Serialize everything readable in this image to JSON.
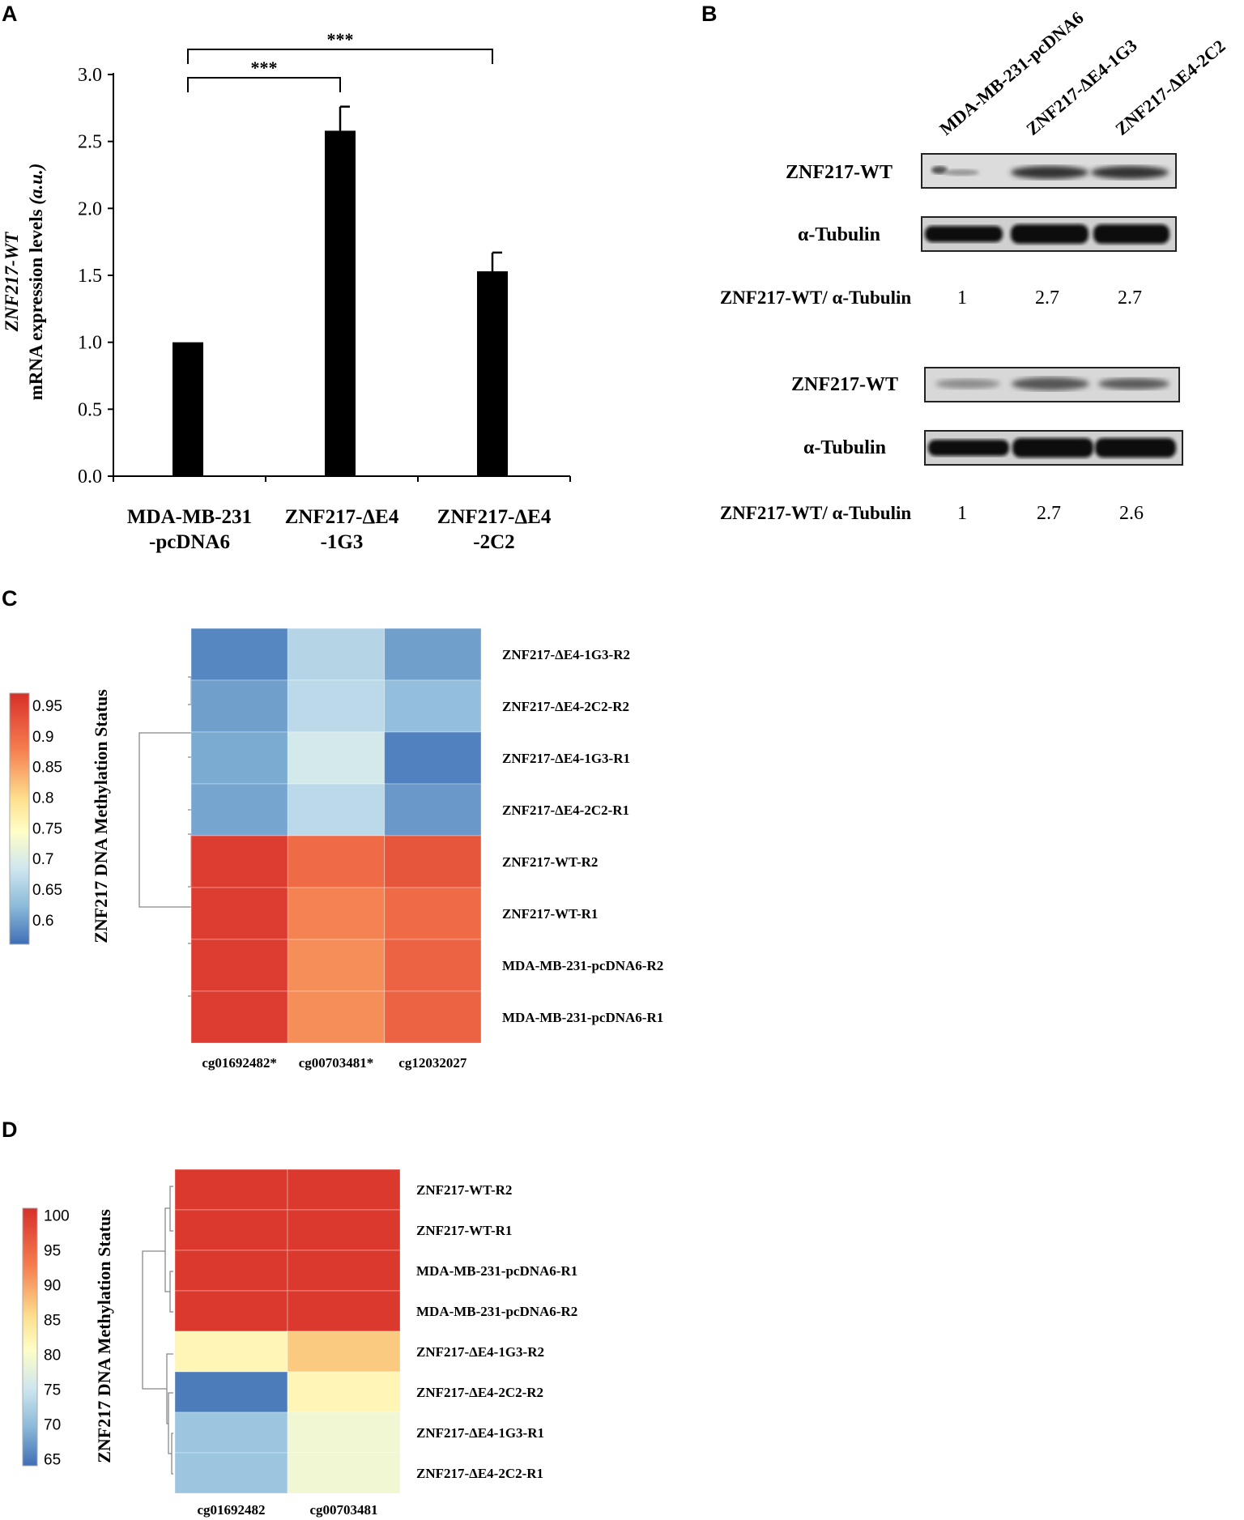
{
  "panels": {
    "A": "A",
    "B": "B",
    "C": "C",
    "D": "D"
  },
  "chart_data": [
    {
      "panel": "A",
      "type": "bar",
      "title": "",
      "ylabel_italic": "ZNF217-WT",
      "ylabel": "mRNA expression levels",
      "ylabel_unit": "(a.u.)",
      "categories": [
        [
          "MDA-MB-231",
          "-pcDNA6"
        ],
        [
          "ZNF217-ΔE4",
          "-1G3"
        ],
        [
          "ZNF217-ΔE4",
          "-2C2"
        ]
      ],
      "values": [
        1.0,
        2.58,
        1.53
      ],
      "errors": [
        0.0,
        0.18,
        0.14
      ],
      "ylim": [
        0,
        3.0
      ],
      "yticks": [
        "0.0",
        "0.5",
        "1.0",
        "1.5",
        "2.0",
        "2.5",
        "3.0"
      ],
      "significance": [
        {
          "from": 0,
          "to": 1,
          "label": "***"
        },
        {
          "from": 0,
          "to": 2,
          "label": "***"
        }
      ]
    },
    {
      "panel": "C",
      "type": "heatmap",
      "ylabel": "ZNF217 DNA Methylation Status",
      "columns": [
        "cg01692482*",
        "cg00703481*",
        "cg12032027"
      ],
      "rows": [
        "ZNF217-ΔE4-1G3-R2",
        "ZNF217-ΔE4-2C2-R2",
        "ZNF217-ΔE4-1G3-R1",
        "ZNF217-ΔE4-2C2-R1",
        "ZNF217-WT-R2",
        "ZNF217-WT-R1",
        "MDA-MB-231-pcDNA6-R2",
        "MDA-MB-231-pcDNA6-R1"
      ],
      "values": [
        [
          0.58,
          0.66,
          0.6
        ],
        [
          0.6,
          0.665,
          0.63
        ],
        [
          0.61,
          0.69,
          0.575
        ],
        [
          0.605,
          0.665,
          0.595
        ],
        [
          0.955,
          0.9,
          0.925
        ],
        [
          0.955,
          0.875,
          0.9
        ],
        [
          0.955,
          0.865,
          0.91
        ],
        [
          0.955,
          0.865,
          0.91
        ]
      ],
      "colorbar": {
        "min": 0.56,
        "max": 0.97,
        "ticks": [
          "0.95",
          "0.9",
          "0.85",
          "0.8",
          "0.75",
          "0.7",
          "0.65",
          "0.6"
        ]
      }
    },
    {
      "panel": "D",
      "type": "heatmap",
      "ylabel": "ZNF217 DNA Methylation Status",
      "columns": [
        "cg01692482",
        "cg00703481"
      ],
      "rows": [
        "ZNF217-WT-R2",
        "ZNF217-WT-R1",
        "MDA-MB-231-pcDNA6-R1",
        "MDA-MB-231-pcDNA6-R2",
        "ZNF217-ΔE4-1G3-R2",
        "ZNF217-ΔE4-2C2-R2",
        "ZNF217-ΔE4-1G3-R1",
        "ZNF217-ΔE4-2C2-R1"
      ],
      "values": [
        [
          100,
          100
        ],
        [
          100,
          100
        ],
        [
          100,
          100
        ],
        [
          100,
          100
        ],
        [
          82,
          87
        ],
        [
          65,
          82
        ],
        [
          71,
          79
        ],
        [
          71,
          79
        ]
      ],
      "colorbar": {
        "min": 64,
        "max": 101,
        "ticks": [
          "100",
          "95",
          "90",
          "85",
          "80",
          "75",
          "70",
          "65"
        ]
      }
    }
  ],
  "western_blot": {
    "lanes": [
      "MDA-MB-231-pcDNA6",
      "ZNF217-ΔE4-1G3",
      "ZNF217-ΔE4-2C2"
    ],
    "blots": [
      {
        "band1_label": "ZNF217-WT",
        "band2_label": "α-Tubulin",
        "ratio_label": "ZNF217-WT/ α-Tubulin",
        "ratios": [
          "1",
          "2.7",
          "2.7"
        ]
      },
      {
        "band1_label": "ZNF217-WT",
        "band2_label": "α-Tubulin",
        "ratio_label": "ZNF217-WT/ α-Tubulin",
        "ratios": [
          "1",
          "2.7",
          "2.6"
        ]
      }
    ]
  }
}
